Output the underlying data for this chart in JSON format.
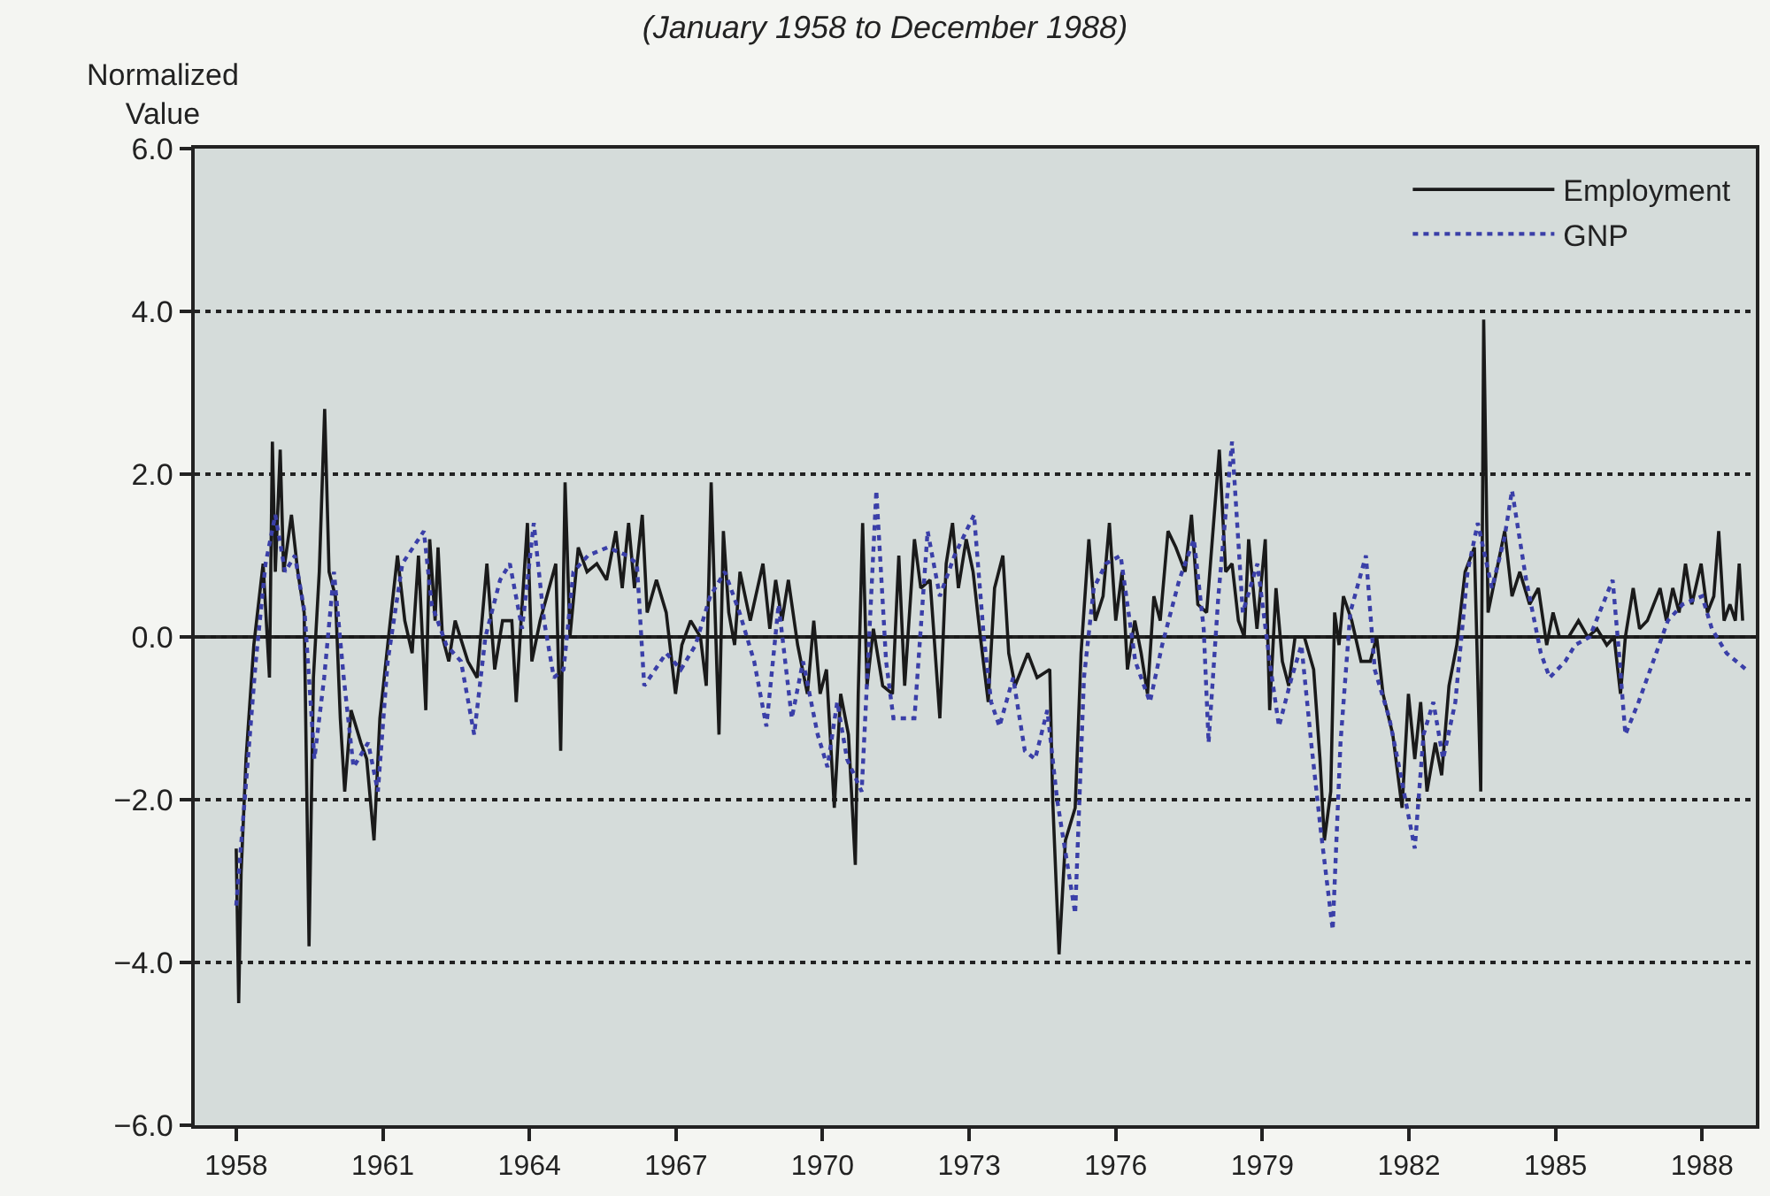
{
  "chart_data": {
    "type": "line",
    "title": "(January 1958 to December 1988)",
    "ylabel": "Normalized Value",
    "xlim": [
      1957.15,
      1989.1
    ],
    "xticks": [
      1958,
      1961,
      1964,
      1967,
      1970,
      1973,
      1976,
      1979,
      1982,
      1985,
      1988
    ],
    "ylim": [
      -6,
      6
    ],
    "yticks": [
      {
        "value": -6,
        "label": "−6.0"
      },
      {
        "value": -4,
        "label": "−4.0"
      },
      {
        "value": -2,
        "label": "−2.0"
      },
      {
        "value": 0,
        "label": "0.0"
      },
      {
        "value": 2,
        "label": "2.0"
      },
      {
        "value": 4,
        "label": "4.0"
      },
      {
        "value": 6,
        "label": "6.0"
      }
    ],
    "grid": "y",
    "legend": "top right",
    "marker": "none",
    "ref_lines": [
      {
        "axis": "y",
        "value": 0,
        "label": null,
        "color": "#1a1a1a",
        "line_style": "solid"
      }
    ],
    "series": [
      {
        "name": "Employment",
        "color": "#1a1a1a",
        "line_style": "solid",
        "x": [
          1958.0,
          1958.05,
          1958.1,
          1958.2,
          1958.36,
          1958.55,
          1958.68,
          1958.74,
          1958.8,
          1958.9,
          1958.97,
          1959.13,
          1959.26,
          1959.39,
          1959.49,
          1959.58,
          1959.7,
          1959.81,
          1959.9,
          1960.03,
          1960.13,
          1960.22,
          1960.35,
          1960.55,
          1960.67,
          1960.82,
          1960.94,
          1961.1,
          1961.3,
          1961.45,
          1961.6,
          1961.73,
          1961.88,
          1961.96,
          1962.07,
          1962.13,
          1962.22,
          1962.35,
          1962.48,
          1962.74,
          1962.93,
          1963.13,
          1963.29,
          1963.45,
          1963.64,
          1963.73,
          1963.83,
          1963.96,
          1964.05,
          1964.22,
          1964.54,
          1964.64,
          1964.73,
          1964.83,
          1965.0,
          1965.18,
          1965.38,
          1965.58,
          1965.77,
          1965.9,
          1966.03,
          1966.15,
          1966.31,
          1966.41,
          1966.6,
          1966.8,
          1966.99,
          1967.12,
          1967.3,
          1967.5,
          1967.62,
          1967.72,
          1967.8,
          1967.88,
          1967.97,
          1968.08,
          1968.2,
          1968.31,
          1968.52,
          1968.78,
          1968.92,
          1969.04,
          1969.17,
          1969.3,
          1969.49,
          1969.69,
          1969.82,
          1969.95,
          1970.08,
          1970.24,
          1970.37,
          1970.53,
          1970.67,
          1970.73,
          1970.82,
          1970.91,
          1971.04,
          1971.23,
          1971.43,
          1971.56,
          1971.68,
          1971.88,
          1972.01,
          1972.2,
          1972.4,
          1972.53,
          1972.66,
          1972.78,
          1972.94,
          1973.08,
          1973.23,
          1973.39,
          1973.52,
          1973.69,
          1973.81,
          1973.94,
          1974.2,
          1974.39,
          1974.65,
          1974.71,
          1974.84,
          1974.97,
          1975.17,
          1975.29,
          1975.45,
          1975.58,
          1975.74,
          1975.87,
          1976.0,
          1976.13,
          1976.24,
          1976.39,
          1976.52,
          1976.65,
          1976.78,
          1976.91,
          1977.07,
          1977.23,
          1977.42,
          1977.55,
          1977.68,
          1977.86,
          1978.12,
          1978.25,
          1978.38,
          1978.51,
          1978.63,
          1978.72,
          1978.89,
          1979.06,
          1979.15,
          1979.28,
          1979.41,
          1979.54,
          1979.67,
          1979.86,
          1980.05,
          1980.18,
          1980.27,
          1980.4,
          1980.48,
          1980.57,
          1980.66,
          1980.83,
          1981.02,
          1981.21,
          1981.34,
          1981.47,
          1981.67,
          1981.86,
          1981.99,
          1982.12,
          1982.24,
          1982.37,
          1982.54,
          1982.67,
          1982.82,
          1982.98,
          1983.15,
          1983.34,
          1983.47,
          1983.53,
          1983.62,
          1983.79,
          1983.96,
          1984.11,
          1984.27,
          1984.47,
          1984.65,
          1984.82,
          1984.95,
          1985.08,
          1985.27,
          1985.47,
          1985.66,
          1985.85,
          1986.05,
          1986.2,
          1986.33,
          1986.43,
          1986.59,
          1986.72,
          1986.88,
          1987.14,
          1987.27,
          1987.4,
          1987.53,
          1987.66,
          1987.79,
          1987.98,
          1988.11,
          1988.24,
          1988.34,
          1988.45,
          1988.57,
          1988.68,
          1988.76,
          1988.83
        ],
        "values": [
          -2.6,
          -4.5,
          -2.9,
          -1.5,
          -0.1,
          0.9,
          -0.5,
          2.4,
          0.8,
          2.3,
          0.8,
          1.5,
          0.8,
          0.3,
          -3.8,
          -0.5,
          0.8,
          2.8,
          0.8,
          0.5,
          -1.0,
          -1.9,
          -0.9,
          -1.3,
          -1.5,
          -2.5,
          -1.0,
          -0.1,
          1.0,
          0.2,
          -0.2,
          1.0,
          -0.9,
          1.2,
          0.2,
          1.1,
          0.0,
          -0.3,
          0.2,
          -0.3,
          -0.5,
          0.9,
          -0.4,
          0.2,
          0.2,
          -0.8,
          0.2,
          1.4,
          -0.3,
          0.2,
          0.9,
          -1.4,
          1.9,
          0.0,
          1.1,
          0.8,
          0.9,
          0.7,
          1.3,
          0.6,
          1.4,
          0.6,
          1.5,
          0.3,
          0.7,
          0.3,
          -0.7,
          -0.1,
          0.2,
          0.0,
          -0.6,
          1.9,
          0.3,
          -1.2,
          1.3,
          0.3,
          -0.1,
          0.8,
          0.2,
          0.9,
          0.1,
          0.7,
          0.2,
          0.7,
          -0.1,
          -0.7,
          0.2,
          -0.7,
          -0.4,
          -2.1,
          -0.7,
          -1.2,
          -2.8,
          -0.7,
          1.4,
          -0.6,
          0.1,
          -0.6,
          -0.7,
          1.0,
          -0.6,
          1.2,
          0.6,
          0.7,
          -1.0,
          0.9,
          1.4,
          0.6,
          1.2,
          0.8,
          0.0,
          -0.8,
          0.6,
          1.0,
          -0.2,
          -0.6,
          -0.2,
          -0.5,
          -0.4,
          -2.0,
          -3.9,
          -2.5,
          -2.1,
          -0.2,
          1.2,
          0.2,
          0.5,
          1.4,
          0.2,
          0.8,
          -0.4,
          0.2,
          -0.2,
          -0.7,
          0.5,
          0.2,
          1.3,
          1.1,
          0.8,
          1.5,
          0.4,
          0.3,
          2.3,
          0.8,
          0.9,
          0.2,
          0.0,
          1.2,
          0.1,
          1.2,
          -0.9,
          0.6,
          -0.3,
          -0.6,
          0.0,
          0.0,
          -0.4,
          -1.5,
          -2.5,
          -1.9,
          0.3,
          -0.1,
          0.5,
          0.2,
          -0.3,
          -0.3,
          0.0,
          -0.7,
          -1.2,
          -2.1,
          -0.7,
          -1.5,
          -0.8,
          -1.9,
          -1.3,
          -1.7,
          -0.6,
          -0.1,
          0.8,
          1.1,
          -1.9,
          3.9,
          0.3,
          0.8,
          1.3,
          0.5,
          0.8,
          0.4,
          0.6,
          -0.1,
          0.3,
          0.0,
          0.0,
          0.2,
          0.0,
          0.1,
          -0.1,
          0.0,
          -0.7,
          0.0,
          0.6,
          0.1,
          0.2,
          0.6,
          0.2,
          0.6,
          0.3,
          0.9,
          0.4,
          0.9,
          0.3,
          0.5,
          1.3,
          0.2,
          0.4,
          0.2,
          0.9,
          0.2
        ]
      },
      {
        "name": "GNP",
        "color": "#3a3fa8",
        "line_style": "dotted",
        "x": [
          1958.0,
          1958.2,
          1958.4,
          1958.6,
          1958.8,
          1959.0,
          1959.2,
          1959.4,
          1959.6,
          1959.8,
          1960.0,
          1960.2,
          1960.4,
          1960.7,
          1960.9,
          1961.1,
          1961.4,
          1961.84,
          1962.0,
          1962.3,
          1962.6,
          1962.87,
          1963.1,
          1963.4,
          1963.6,
          1963.85,
          1964.09,
          1964.3,
          1964.5,
          1964.7,
          1964.9,
          1965.2,
          1965.6,
          1966.0,
          1966.2,
          1966.35,
          1966.8,
          1967.1,
          1967.4,
          1967.7,
          1968.0,
          1968.3,
          1968.6,
          1968.85,
          1969.1,
          1969.37,
          1969.6,
          1969.9,
          1970.1,
          1970.3,
          1970.5,
          1970.8,
          1971.1,
          1971.3,
          1971.45,
          1971.88,
          1972.15,
          1972.4,
          1972.7,
          1973.1,
          1973.3,
          1973.45,
          1973.62,
          1973.9,
          1974.14,
          1974.35,
          1974.6,
          1974.8,
          1975.17,
          1975.35,
          1975.55,
          1975.8,
          1976.1,
          1976.4,
          1976.7,
          1976.95,
          1977.3,
          1977.6,
          1977.8,
          1977.9,
          1978.1,
          1978.38,
          1978.6,
          1978.9,
          1979.15,
          1979.34,
          1979.6,
          1979.8,
          1980.0,
          1980.2,
          1980.44,
          1980.6,
          1980.8,
          1981.12,
          1981.3,
          1981.6,
          1981.8,
          1982.12,
          1982.3,
          1982.5,
          1982.7,
          1982.95,
          1983.2,
          1983.41,
          1983.7,
          1983.95,
          1984.11,
          1984.4,
          1984.7,
          1984.88,
          1985.2,
          1985.4,
          1985.7,
          1986.17,
          1986.3,
          1986.43,
          1986.7,
          1987.0,
          1987.3,
          1987.6,
          1988.0,
          1988.2,
          1988.5,
          1988.9
        ],
        "values": [
          -3.3,
          -1.8,
          -0.3,
          0.9,
          1.5,
          0.8,
          1.0,
          0.3,
          -1.5,
          -0.5,
          0.8,
          -0.5,
          -1.6,
          -1.3,
          -1.9,
          -0.3,
          0.9,
          1.3,
          0.4,
          -0.1,
          -0.3,
          -1.2,
          0.0,
          0.7,
          0.9,
          0.1,
          1.4,
          0.2,
          -0.5,
          -0.4,
          0.8,
          1.0,
          1.1,
          1.0,
          0.9,
          -0.6,
          -0.2,
          -0.4,
          -0.1,
          0.5,
          0.8,
          0.3,
          -0.3,
          -1.1,
          0.4,
          -1.0,
          -0.3,
          -1.2,
          -1.6,
          -0.8,
          -1.5,
          -1.9,
          1.8,
          -0.3,
          -1.0,
          -1.0,
          1.3,
          0.5,
          1.0,
          1.5,
          0.0,
          -0.8,
          -1.1,
          -0.5,
          -1.4,
          -1.5,
          -0.9,
          -2.0,
          -3.4,
          -0.5,
          0.6,
          0.9,
          1.0,
          -0.3,
          -0.8,
          -0.1,
          0.7,
          1.2,
          0.1,
          -1.3,
          0.5,
          2.4,
          0.3,
          0.9,
          -0.3,
          -1.1,
          -0.5,
          -0.1,
          -1.3,
          -2.4,
          -3.6,
          -1.3,
          0.3,
          1.0,
          -0.4,
          -1.0,
          -1.6,
          -2.6,
          -1.2,
          -0.8,
          -1.5,
          -0.8,
          0.8,
          1.4,
          0.6,
          1.2,
          1.8,
          0.7,
          -0.2,
          -0.5,
          -0.3,
          -0.1,
          0.0,
          0.7,
          -0.2,
          -1.2,
          -0.8,
          -0.3,
          0.2,
          0.4,
          0.5,
          0.1,
          -0.2,
          -0.4
        ]
      }
    ]
  }
}
